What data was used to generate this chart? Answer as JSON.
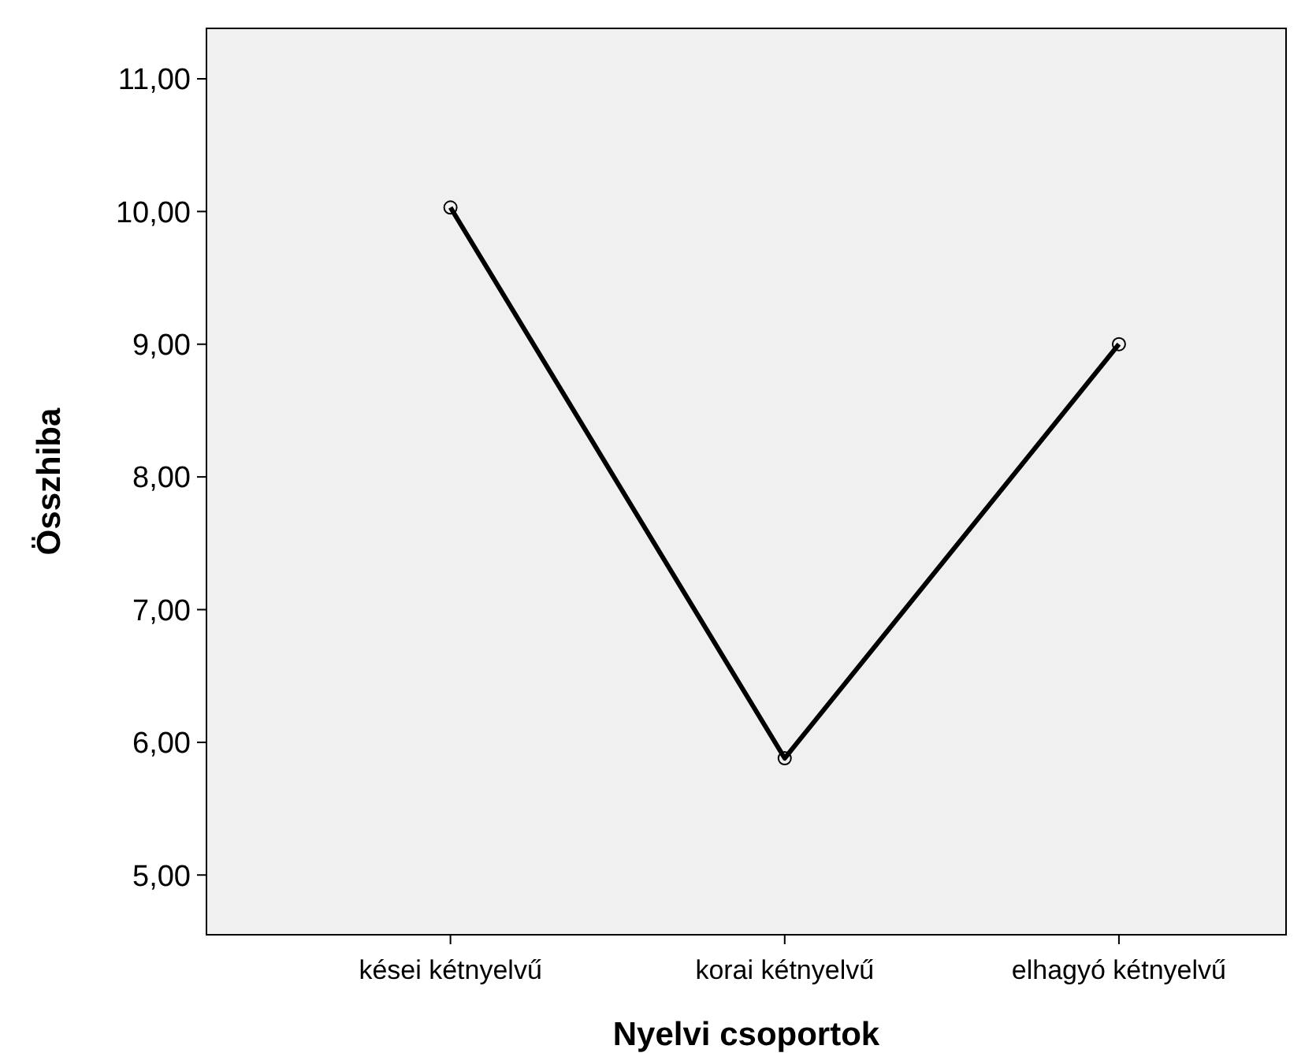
{
  "chart_data": {
    "type": "line",
    "xlabel": "Nyelvi csoportok",
    "ylabel": "Összhiba",
    "categories": [
      "kései kétnyelvű",
      "korai kétnyelvű",
      "elhagyó kétnyelvű"
    ],
    "series": [
      {
        "color": "#000000",
        "values": [
          10.03,
          5.88,
          9.0
        ]
      }
    ],
    "ylim": [
      4.55,
      11.38
    ],
    "yticks": [
      {
        "value": 5,
        "label": "5,00"
      },
      {
        "value": 6,
        "label": "6,00"
      },
      {
        "value": 7,
        "label": "7,00"
      },
      {
        "value": 8,
        "label": "8,00"
      },
      {
        "value": 9,
        "label": "9,00"
      },
      {
        "value": 10,
        "label": "10,00"
      },
      {
        "value": 11,
        "label": "11,00"
      }
    ],
    "marker": "circle",
    "line_style": "solid",
    "grid": false
  }
}
